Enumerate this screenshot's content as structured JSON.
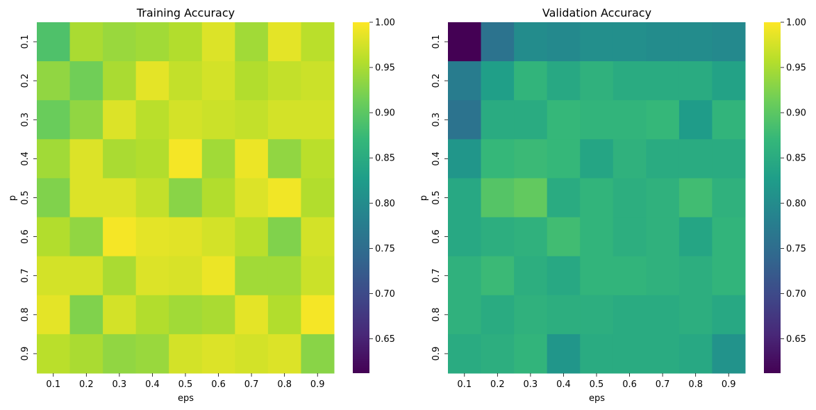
{
  "colormap_stops": [
    "#440154",
    "#482878",
    "#3e4989",
    "#31688e",
    "#26828e",
    "#1f9e89",
    "#35b779",
    "#6ece58",
    "#b5de2b",
    "#fde725"
  ],
  "chart_data": [
    {
      "type": "heatmap",
      "title": "Training Accuracy",
      "xlabel": "eps",
      "ylabel": "p",
      "x_categories": [
        "0.1",
        "0.2",
        "0.3",
        "0.4",
        "0.5",
        "0.6",
        "0.7",
        "0.8",
        "0.9"
      ],
      "y_categories": [
        "0.1",
        "0.2",
        "0.3",
        "0.4",
        "0.5",
        "0.6",
        "0.7",
        "0.8",
        "0.9"
      ],
      "vmin": 0.612,
      "vmax": 1.0,
      "colorbar_ticks": [
        "0.65",
        "0.70",
        "0.75",
        "0.80",
        "0.85",
        "0.90",
        "0.95",
        "1.00"
      ],
      "values": [
        [
          0.89,
          0.95,
          0.94,
          0.945,
          0.955,
          0.98,
          0.945,
          0.985,
          0.96
        ],
        [
          0.935,
          0.915,
          0.95,
          0.985,
          0.965,
          0.975,
          0.955,
          0.965,
          0.97
        ],
        [
          0.91,
          0.935,
          0.98,
          0.96,
          0.975,
          0.97,
          0.965,
          0.975,
          0.975
        ],
        [
          0.945,
          0.98,
          0.95,
          0.955,
          0.995,
          0.945,
          0.99,
          0.935,
          0.96
        ],
        [
          0.925,
          0.98,
          0.98,
          0.965,
          0.93,
          0.955,
          0.98,
          0.993,
          0.955
        ],
        [
          0.955,
          0.935,
          0.995,
          0.985,
          0.983,
          0.975,
          0.96,
          0.925,
          0.975
        ],
        [
          0.975,
          0.975,
          0.95,
          0.98,
          0.978,
          0.99,
          0.945,
          0.945,
          0.97
        ],
        [
          0.985,
          0.925,
          0.975,
          0.955,
          0.945,
          0.95,
          0.985,
          0.955,
          0.995
        ],
        [
          0.96,
          0.95,
          0.935,
          0.94,
          0.975,
          0.98,
          0.975,
          0.98,
          0.93
        ]
      ]
    },
    {
      "type": "heatmap",
      "title": "Validation Accuracy",
      "xlabel": "eps",
      "ylabel": "p",
      "x_categories": [
        "0.1",
        "0.2",
        "0.3",
        "0.4",
        "0.5",
        "0.6",
        "0.7",
        "0.8",
        "0.9"
      ],
      "y_categories": [
        "0.1",
        "0.2",
        "0.3",
        "0.4",
        "0.5",
        "0.6",
        "0.7",
        "0.8",
        "0.9"
      ],
      "vmin": 0.612,
      "vmax": 1.0,
      "colorbar_ticks": [
        "0.65",
        "0.70",
        "0.75",
        "0.80",
        "0.85",
        "0.90",
        "0.95",
        "1.00"
      ],
      "values": [
        [
          0.612,
          0.76,
          0.8,
          0.795,
          0.805,
          0.805,
          0.8,
          0.8,
          0.795
        ],
        [
          0.775,
          0.83,
          0.865,
          0.845,
          0.86,
          0.85,
          0.85,
          0.85,
          0.835
        ],
        [
          0.76,
          0.85,
          0.85,
          0.87,
          0.865,
          0.865,
          0.87,
          0.825,
          0.865
        ],
        [
          0.815,
          0.87,
          0.875,
          0.87,
          0.84,
          0.86,
          0.85,
          0.85,
          0.85
        ],
        [
          0.845,
          0.895,
          0.905,
          0.85,
          0.865,
          0.855,
          0.86,
          0.88,
          0.86
        ],
        [
          0.845,
          0.855,
          0.86,
          0.88,
          0.865,
          0.855,
          0.86,
          0.84,
          0.865
        ],
        [
          0.86,
          0.875,
          0.855,
          0.845,
          0.865,
          0.865,
          0.86,
          0.855,
          0.865
        ],
        [
          0.86,
          0.85,
          0.86,
          0.855,
          0.855,
          0.85,
          0.85,
          0.855,
          0.845
        ],
        [
          0.85,
          0.855,
          0.865,
          0.815,
          0.85,
          0.85,
          0.85,
          0.845,
          0.81
        ]
      ]
    }
  ]
}
